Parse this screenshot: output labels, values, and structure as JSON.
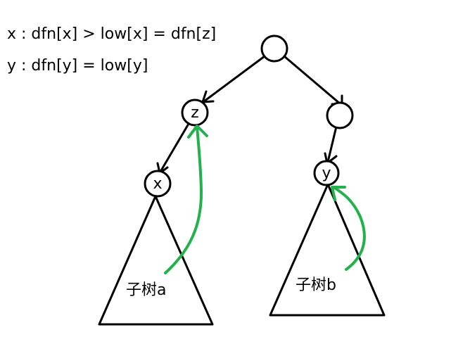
{
  "formulas": {
    "line1": "x : dfn[x] > low[x] = dfn[z]",
    "line2": "y : dfn[y] = low[y]"
  },
  "nodes": {
    "root": "",
    "z": "z",
    "right": "",
    "x": "x",
    "y": "y"
  },
  "subtrees": {
    "a": "子树a",
    "b": "子树b"
  },
  "colors": {
    "edges": "#000000",
    "back_arrows": "#22b14c"
  }
}
